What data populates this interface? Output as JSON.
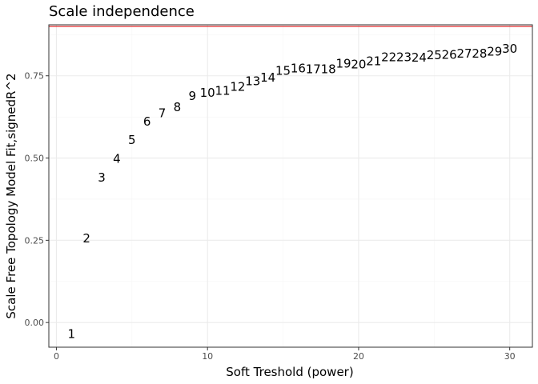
{
  "chart_data": {
    "type": "scatter",
    "title": "Scale independence",
    "xlabel": "Soft Treshold (power)",
    "ylabel": "Scale Free Topology Model Fit,signedR^2",
    "xlim": [
      -0.5,
      31.5
    ],
    "ylim": [
      -0.075,
      0.905
    ],
    "x_ticks": [
      0,
      10,
      20,
      30
    ],
    "x_tick_labels": [
      "0",
      "10",
      "20",
      "30"
    ],
    "y_ticks": [
      0.0,
      0.25,
      0.5,
      0.75
    ],
    "y_tick_labels": [
      "0.00",
      "0.25",
      "0.50",
      "0.75"
    ],
    "grid": true,
    "reference_line": {
      "y": 0.9,
      "color": "#e41a1c"
    },
    "point_style": "text labels (power value)",
    "x": [
      1,
      2,
      3,
      4,
      5,
      6,
      7,
      8,
      9,
      10,
      11,
      12,
      13,
      14,
      15,
      16,
      17,
      18,
      19,
      20,
      21,
      22,
      23,
      24,
      25,
      26,
      27,
      28,
      29,
      30
    ],
    "y": [
      -0.035,
      0.256,
      0.44,
      0.498,
      0.555,
      0.611,
      0.636,
      0.655,
      0.688,
      0.698,
      0.704,
      0.717,
      0.733,
      0.745,
      0.765,
      0.772,
      0.77,
      0.77,
      0.787,
      0.785,
      0.794,
      0.806,
      0.806,
      0.805,
      0.813,
      0.814,
      0.817,
      0.817,
      0.824,
      0.832
    ],
    "labels": [
      "1",
      "2",
      "3",
      "4",
      "5",
      "6",
      "7",
      "8",
      "9",
      "10",
      "11",
      "12",
      "13",
      "14",
      "15",
      "16",
      "17",
      "18",
      "19",
      "20",
      "21",
      "22",
      "23",
      "24",
      "25",
      "26",
      "27",
      "28",
      "29",
      "30"
    ],
    "colors": {
      "panel_border": "#333333",
      "grid_major": "#ebebeb",
      "grid_minor": "#f5f5f5",
      "tick_mark": "#333333",
      "label_text": "#000000"
    }
  }
}
